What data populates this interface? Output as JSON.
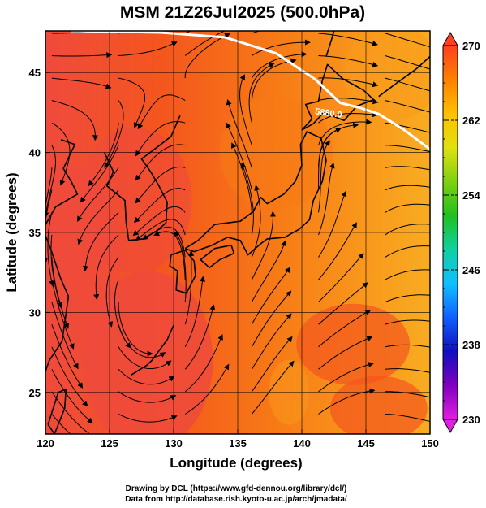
{
  "chart_data": {
    "type": "heatmap",
    "title": "MSM 21Z26Jul2025 (500.0hPa)",
    "xlabel": "Longitude (degrees)",
    "ylabel": "Latitude  (degrees)",
    "xlim": [
      120,
      150
    ],
    "ylim": [
      22.4,
      47.6
    ],
    "x_ticks": [
      120,
      125,
      130,
      135,
      140,
      145,
      150
    ],
    "y_ticks": [
      25,
      30,
      35,
      40,
      45
    ],
    "grid": true,
    "colorbar": {
      "min": 230,
      "max": 270,
      "ticks": [
        230,
        238,
        246,
        254,
        262,
        270
      ],
      "colors": [
        "#e020e0",
        "#8000c0",
        "#1010c0",
        "#1060ff",
        "#10c0ff",
        "#10d0a0",
        "#20c020",
        "#80d010",
        "#e0e010",
        "#ffc000",
        "#ff8000",
        "#ff4020"
      ]
    },
    "field_colors": {
      "warm_core": "#ef4a3c",
      "warm": "#f4561e",
      "mid": "#f77a16",
      "cool": "#f99a1c",
      "coolest": "#f8ac22"
    },
    "contour": {
      "label": "5880.0",
      "color": "#ffffff",
      "points": [
        [
          122,
          47.6
        ],
        [
          129,
          47.5
        ],
        [
          134,
          47.2
        ],
        [
          138,
          46.2
        ],
        [
          141,
          44.6
        ],
        [
          143,
          43.1
        ],
        [
          144.5,
          42.8
        ],
        [
          146,
          42.4
        ],
        [
          148,
          41.4
        ],
        [
          150,
          40.2
        ]
      ]
    },
    "credits": [
      "Drawing by DCL (https://www.gfd-dennou.org/library/dcl/)",
      "Data from http://database.rish.kyoto-u.ac.jp/arch/jmadata/"
    ]
  }
}
